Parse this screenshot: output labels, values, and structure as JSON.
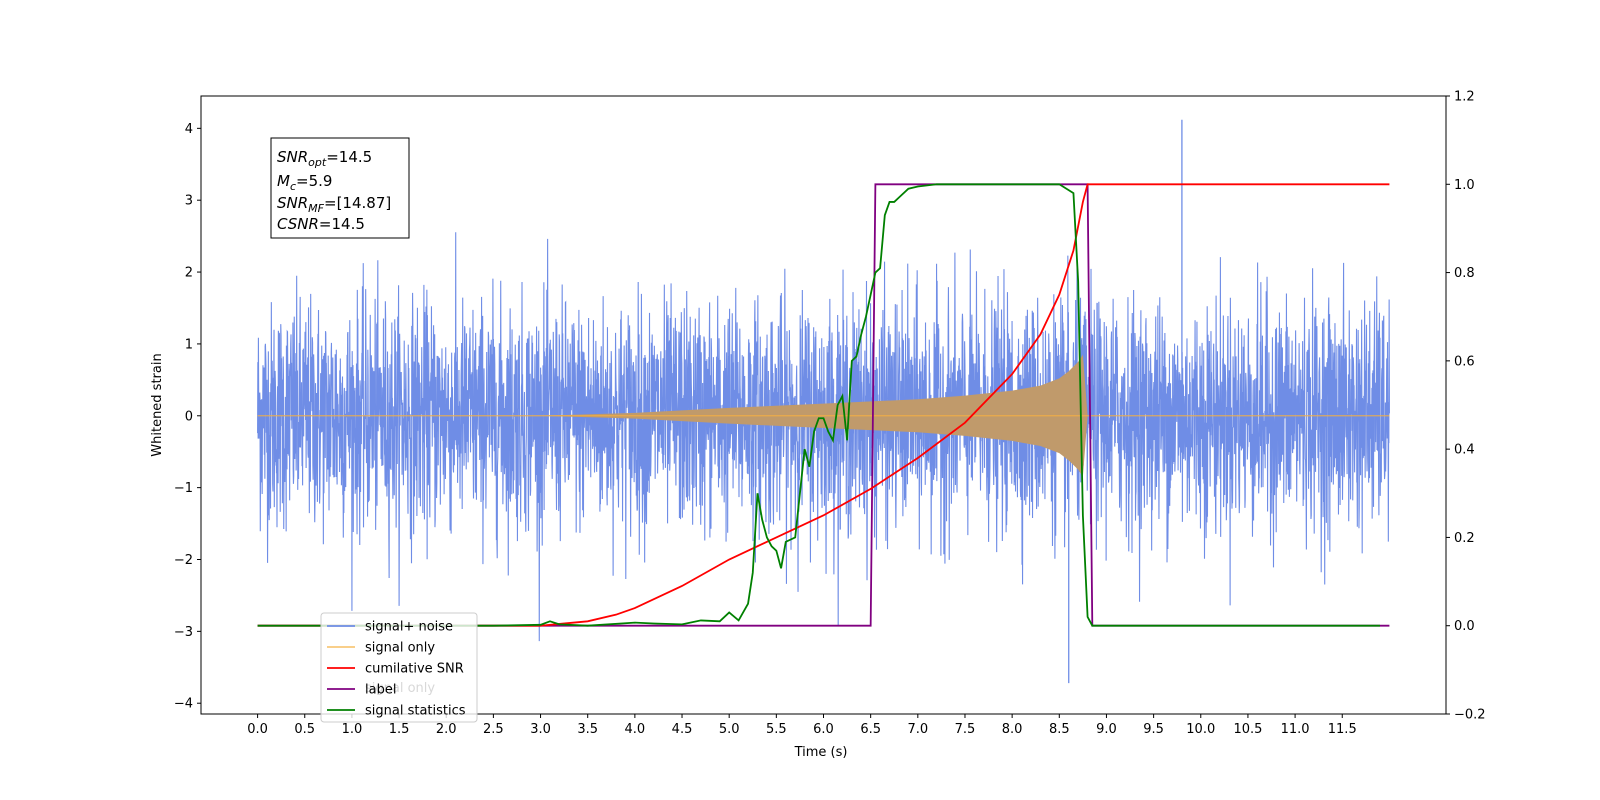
{
  "chart_data": {
    "type": "line",
    "xlabel": "Time (s)",
    "ylabel": "Whitened strain",
    "ylabel_right": "",
    "xlim": [
      -0.6,
      12.6
    ],
    "ylim": [
      -4.15,
      4.45
    ],
    "ylim_right": [
      -0.2,
      1.2
    ],
    "x_ticks": [
      "0.0",
      "0.5",
      "1.0",
      "1.5",
      "2.0",
      "2.5",
      "3.0",
      "3.5",
      "4.0",
      "4.5",
      "5.0",
      "5.5",
      "6.0",
      "6.5",
      "7.0",
      "7.5",
      "8.0",
      "8.5",
      "9.0",
      "9.5",
      "10.0",
      "10.5",
      "11.0",
      "11.5"
    ],
    "y_ticks_left": [
      "−4",
      "−3",
      "−2",
      "−1",
      "0",
      "1",
      "2",
      "3",
      "4"
    ],
    "y_ticks_right": [
      "−0.2",
      "0.0",
      "0.2",
      "0.4",
      "0.6",
      "0.8",
      "1.0",
      "1.2"
    ],
    "grid": false,
    "legend_position": "lower-left",
    "colors": {
      "signal_noise": "#6f8de6",
      "signal_only": "#f5b041",
      "envelope_fill": "#c09a6b",
      "cumulative_snr": "#ff0000",
      "label": "#800080",
      "signal_statistics": "#008000"
    },
    "stats_box": {
      "snr_opt": {
        "base": "SNR",
        "sub": "opt",
        "value": "=14.5"
      },
      "m_c": {
        "base": "M",
        "sub": "c",
        "value": "=5.9"
      },
      "snr_mf": {
        "base": "SNR",
        "sub": "MF",
        "value": "=[14.87]"
      },
      "csnr": {
        "base": "CSNR",
        "value": "=14.5"
      }
    },
    "series": [
      {
        "name": "signal+ noise",
        "axis": "left",
        "t_start": 0.0,
        "t_end": 12.0,
        "noise_sigma": 1.0,
        "peak_values": {
          "max": 4.12,
          "min": -3.72
        }
      },
      {
        "name": "signal only",
        "axis": "left",
        "t_start": 0.0,
        "t_end": 12.0,
        "envelope": {
          "x": [
            0.0,
            3.0,
            4.0,
            5.0,
            6.0,
            7.0,
            7.5,
            8.0,
            8.3,
            8.5,
            8.6,
            8.7,
            8.75,
            8.8,
            12.0
          ],
          "y": [
            0.0,
            0.0,
            0.04,
            0.11,
            0.17,
            0.23,
            0.28,
            0.35,
            0.42,
            0.52,
            0.62,
            0.75,
            0.85,
            0.0,
            0.0
          ]
        }
      },
      {
        "name": "cumilative SNR",
        "axis": "right",
        "x": [
          0.0,
          3.0,
          3.2,
          3.5,
          3.8,
          4.0,
          4.5,
          5.0,
          5.5,
          6.0,
          6.5,
          7.0,
          7.5,
          8.0,
          8.3,
          8.5,
          8.65,
          8.75,
          8.8,
          12.0
        ],
        "y": [
          0.0,
          0.0,
          0.004,
          0.01,
          0.025,
          0.04,
          0.09,
          0.15,
          0.2,
          0.25,
          0.31,
          0.38,
          0.46,
          0.57,
          0.66,
          0.75,
          0.85,
          0.96,
          1.0,
          1.0
        ]
      },
      {
        "name": "label",
        "axis": "right",
        "x": [
          0.0,
          6.5,
          6.55,
          8.8,
          8.85,
          12.0
        ],
        "y": [
          0.0,
          0.0,
          1.0,
          1.0,
          0.0,
          0.0
        ]
      },
      {
        "name": "signal statistics",
        "axis": "right",
        "x": [
          0.0,
          2.5,
          3.0,
          3.1,
          3.2,
          3.5,
          4.0,
          4.2,
          4.5,
          4.7,
          4.9,
          5.0,
          5.1,
          5.2,
          5.25,
          5.3,
          5.35,
          5.4,
          5.45,
          5.5,
          5.55,
          5.6,
          5.7,
          5.8,
          5.85,
          5.9,
          5.95,
          6.0,
          6.05,
          6.1,
          6.15,
          6.2,
          6.25,
          6.3,
          6.35,
          6.4,
          6.45,
          6.5,
          6.55,
          6.6,
          6.65,
          6.7,
          6.75,
          6.8,
          6.9,
          7.0,
          7.2,
          8.5,
          8.65,
          8.7,
          8.75,
          8.8,
          8.85,
          9.0,
          11.9
        ],
        "y": [
          0.0,
          0.0,
          0.002,
          0.01,
          0.003,
          0.0,
          0.007,
          0.005,
          0.003,
          0.012,
          0.01,
          0.03,
          0.012,
          0.05,
          0.12,
          0.3,
          0.24,
          0.2,
          0.18,
          0.17,
          0.13,
          0.19,
          0.2,
          0.4,
          0.36,
          0.44,
          0.47,
          0.47,
          0.44,
          0.42,
          0.5,
          0.52,
          0.42,
          0.6,
          0.61,
          0.66,
          0.7,
          0.75,
          0.8,
          0.81,
          0.93,
          0.96,
          0.96,
          0.97,
          0.99,
          0.995,
          1.0,
          1.0,
          0.98,
          0.78,
          0.25,
          0.02,
          0.0,
          0.0,
          0.0
        ]
      }
    ]
  },
  "legend": {
    "items": [
      {
        "label": "signal+ noise",
        "color": "#6f8de6"
      },
      {
        "label": "signal only",
        "color": "#f5b041"
      },
      {
        "label": "cumilative SNR",
        "color": "#ff0000"
      },
      {
        "label": "label",
        "color": "#800080"
      },
      {
        "label": "signal statistics",
        "color": "#008000"
      }
    ],
    "overlapped_text": "signal only"
  }
}
